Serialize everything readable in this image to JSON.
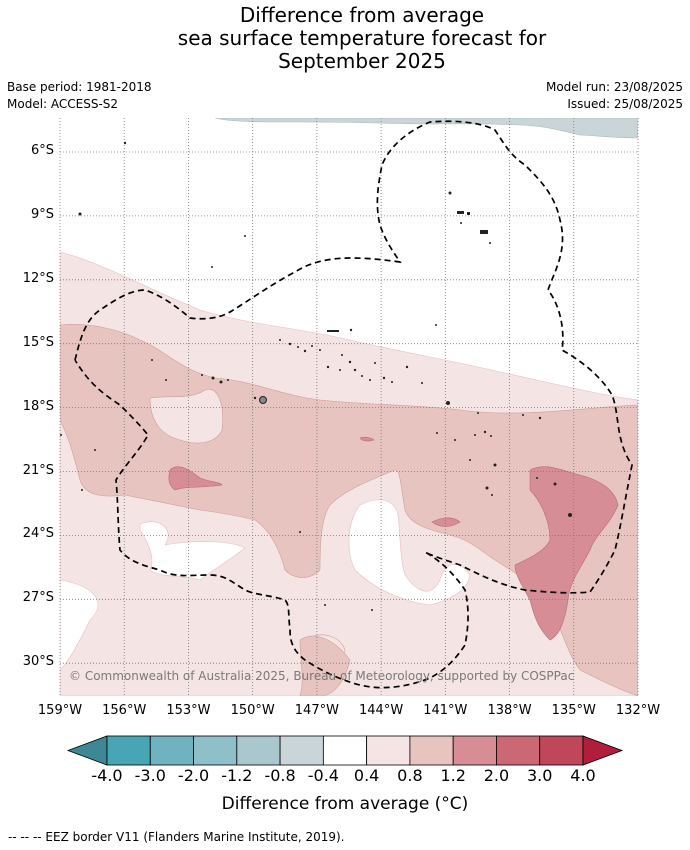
{
  "title": {
    "line1": "Difference from average",
    "line2": "sea surface temperature forecast for",
    "line3": "September 2025"
  },
  "meta": {
    "base_period": "Base period: 1981-2018",
    "model": "Model: ACCESS-S2",
    "model_run": "Model run: 23/08/2025",
    "issued": "Issued: 25/08/2025"
  },
  "map": {
    "lat_labels": [
      "6°S",
      "9°S",
      "12°S",
      "15°S",
      "18°S",
      "21°S",
      "24°S",
      "27°S",
      "30°S"
    ],
    "lon_labels": [
      "159°W",
      "156°W",
      "153°W",
      "150°W",
      "147°W",
      "144°W",
      "141°W",
      "138°W",
      "135°W",
      "132°W"
    ],
    "lat_values": [
      -6,
      -9,
      -12,
      -15,
      -18,
      -21,
      -24,
      -27,
      -30
    ],
    "lon_values": [
      -159,
      -156,
      -153,
      -150,
      -147,
      -144,
      -141,
      -138,
      -135,
      -132
    ],
    "gridlines": "dotted",
    "copyright": "© Commonwealth of Australia 2025, Bureau of Meteorology, supported by COSPPac"
  },
  "colorbar": {
    "ticks": [
      "-4.0",
      "-3.0",
      "-2.0",
      "-1.2",
      "-0.8",
      "-0.4",
      "0.4",
      "0.8",
      "1.2",
      "2.0",
      "3.0",
      "4.0"
    ],
    "colors": [
      "#3e8896",
      "#47a5b5",
      "#6fb3c1",
      "#8fbfc9",
      "#a9c8cd",
      "#c9d5d8",
      "#ffffff",
      "#f4e4e3",
      "#e8c4c1",
      "#d78d95",
      "#cc6874",
      "#c0475a",
      "#b01e3c"
    ],
    "label": "Difference from average (°C)"
  },
  "legend_note": "-- -- -- EEZ border V11 (Flanders Marine Institute, 2019)."
}
